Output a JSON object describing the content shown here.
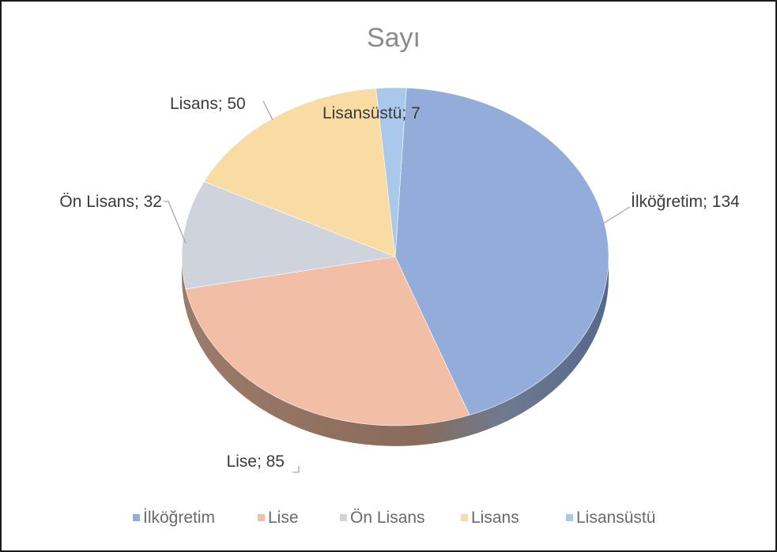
{
  "chart_data": {
    "type": "pie",
    "title": "Sayı",
    "categories": [
      "İlköğretim",
      "Lise",
      "Ön Lisans",
      "Lisans",
      "Lisansüstü"
    ],
    "values": [
      134,
      85,
      32,
      50,
      7
    ],
    "data_labels": [
      "İlköğretim; 134",
      "Lise; 85",
      "Ön Lisans; 32",
      "Lisans; 50",
      "Lisansüstü; 7"
    ],
    "colors": [
      "#93acd9",
      "#f2bea6",
      "#cfd3dc",
      "#f9dca4",
      "#a9c8ea"
    ],
    "legend_position": "bottom",
    "style": "3d"
  }
}
